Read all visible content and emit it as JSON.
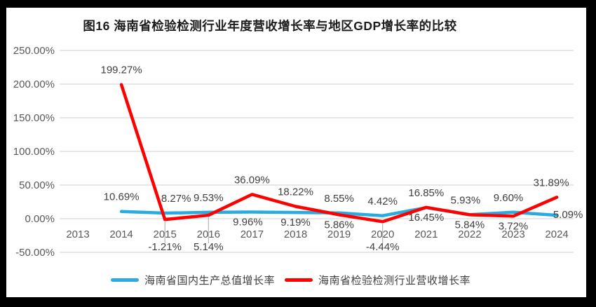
{
  "chart_data": {
    "type": "line",
    "title": "图16 海南省检验检测行业年度营收增长率与地区GDP增长率的比较",
    "categories": [
      "2013",
      "2014",
      "2015",
      "2016",
      "2017",
      "2018",
      "2019",
      "2020",
      "2021",
      "2022",
      "2023",
      "2024"
    ],
    "y_axis": {
      "range": [
        -50,
        250
      ],
      "ticks": [
        {
          "value": 250,
          "label": "250.00%"
        },
        {
          "value": 200,
          "label": "200.00%"
        },
        {
          "value": 150,
          "label": "150.00%"
        },
        {
          "value": 100,
          "label": "100.00%"
        },
        {
          "value": 50,
          "label": "50.00%"
        },
        {
          "value": 0,
          "label": "0.00%"
        },
        {
          "value": -50,
          "label": "-50.00%"
        }
      ]
    },
    "grid": true,
    "legend_position": "bottom",
    "series": [
      {
        "name": "海南省国内生产总值增长率",
        "color": "#29abe2",
        "values": [
          null,
          10.69,
          8.27,
          9.53,
          9.96,
          9.19,
          8.55,
          4.42,
          16.45,
          5.93,
          9.6,
          5.09
        ],
        "labels": [
          "",
          "10.69%",
          "8.27%",
          "9.53%",
          "9.96%",
          "9.19%",
          "8.55%",
          "4.42%",
          "16.45%",
          "5.93%",
          "9.60%",
          "5.09%"
        ],
        "label_side": [
          null,
          "above",
          "above",
          "above",
          "below",
          "below",
          "above",
          "above",
          "below",
          "above",
          "above",
          "right"
        ]
      },
      {
        "name": "海南省检验检测行业营收增长率",
        "color": "#fe0000",
        "values": [
          null,
          199.27,
          -1.21,
          5.14,
          36.09,
          18.22,
          5.86,
          -4.44,
          16.85,
          5.84,
          3.72,
          31.89
        ],
        "labels": [
          "",
          "199.27%",
          "-1.21%",
          "5.14%",
          "36.09%",
          "18.22%",
          "5.86%",
          "-4.44%",
          "16.85%",
          "5.84%",
          "3.72%",
          "31.89%"
        ],
        "label_side": [
          null,
          "above",
          "axis",
          "axis",
          "above",
          "above",
          "below",
          "axis",
          "above",
          "below",
          "below",
          "above"
        ]
      }
    ],
    "styles": {
      "background": "#ffffff",
      "frame_color": "#000000",
      "grid_color": "#d9d9d9",
      "axis_text_color": "#595959",
      "data_label_color": "#3f3f3f",
      "leader_color": "#a6a6a6",
      "title_color": "#1c1c1c"
    }
  }
}
